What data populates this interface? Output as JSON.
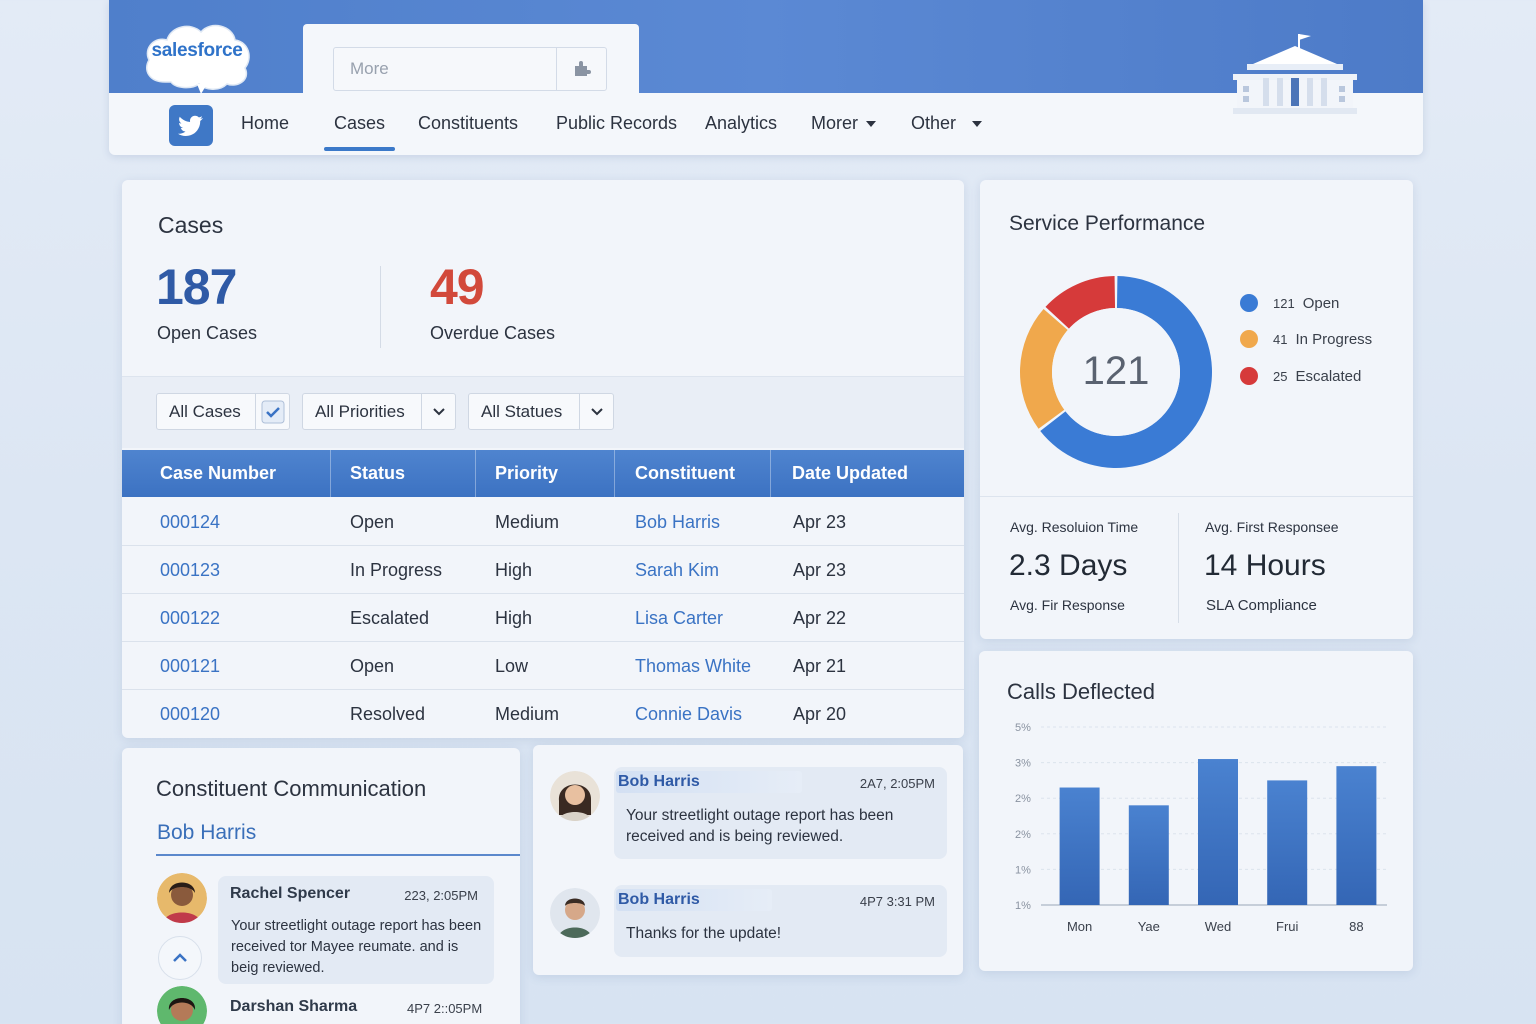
{
  "brand": {
    "logo_text": "salesforce"
  },
  "search": {
    "placeholder": "More"
  },
  "nav": {
    "items": [
      {
        "label": "Home"
      },
      {
        "label": "Cases"
      },
      {
        "label": "Constituents"
      },
      {
        "label": "Public Records"
      },
      {
        "label": "Analytics"
      },
      {
        "label": "Morer"
      },
      {
        "label": "Other"
      }
    ],
    "active": "Cases"
  },
  "cases": {
    "title": "Cases",
    "open_count": "187",
    "open_label": "Open Cases",
    "overdue_count": "49",
    "overdue_label": "Overdue Cases",
    "filters": [
      "All Cases",
      "All Priorities",
      "All Statues"
    ],
    "columns": [
      "Case Number",
      "Status",
      "Priority",
      "Constituent",
      "Date Updated"
    ],
    "rows": [
      {
        "number": "000124",
        "status": "Open",
        "priority": "Medium",
        "constituent": "Bob Harris",
        "date": "Apr 23"
      },
      {
        "number": "000123",
        "status": "In Progress",
        "priority": "High",
        "constituent": "Sarah Kim",
        "date": "Apr 23"
      },
      {
        "number": "000122",
        "status": "Escalated",
        "priority": "High",
        "constituent": "Lisa Carter",
        "date": "Apr 22"
      },
      {
        "number": "000121",
        "status": "Open",
        "priority": "Low",
        "constituent": "Thomas White",
        "date": "Apr 21"
      },
      {
        "number": "000120",
        "status": "Resolved",
        "priority": "Medium",
        "constituent": "Connie Davis",
        "date": "Apr 20"
      }
    ]
  },
  "service_performance": {
    "title": "Service Performance",
    "center_value": "121",
    "legend": [
      {
        "count": "121",
        "label": "Open",
        "color": "#3a7bd5"
      },
      {
        "count": "41",
        "label": "In Progress",
        "color": "#f0a84c"
      },
      {
        "count": "25",
        "label": "Escalated",
        "color": "#d63a3a"
      }
    ],
    "stat_left_label": "Avg. Resoluion Time",
    "stat_left_value": "2.3 Days",
    "stat_left_sub": "Avg. Fir Response",
    "stat_right_label": "Avg. First Responsee",
    "stat_right_value": "14 Hours",
    "stat_right_sub": "SLA Compliance"
  },
  "calls_deflected": {
    "title": "Calls Deflected",
    "chart_data": {
      "type": "bar",
      "categories": [
        "Mon",
        "Yae",
        "Wed",
        "Frui",
        "88"
      ],
      "values": [
        3.3,
        2.8,
        4.1,
        3.5,
        3.9
      ],
      "ytick_labels": [
        "5%",
        "3%",
        "2%",
        "2%",
        "1%",
        "1%"
      ],
      "ylim": [
        0,
        5
      ],
      "grid": true,
      "color": "#3b74c6"
    }
  },
  "communication": {
    "title": "Constituent Communication",
    "subtitle": "Bob Harris",
    "messages_left": [
      {
        "sender": "Rachel Spencer",
        "time": "223, 2:05PM",
        "text": "Your streetlight outage report has been received tor Mayee reumate. and is beig reviewed."
      },
      {
        "sender": "Darshan Sharma",
        "time": "4P7 2::05PM",
        "text": ""
      }
    ],
    "messages_right": [
      {
        "sender": "Bob Harris",
        "time": "2A7, 2:05PM",
        "text": "Your streetlight outage report has been received and is being reviewed."
      },
      {
        "sender": "Bob Harris",
        "time": "4P7 3:31 PM",
        "text": "Thanks for the update!"
      }
    ]
  },
  "colors": {
    "accent": "#3b79c9",
    "header_band": "#5585cf",
    "overdue": "#d2493b",
    "open_count": "#2f5aa6"
  }
}
